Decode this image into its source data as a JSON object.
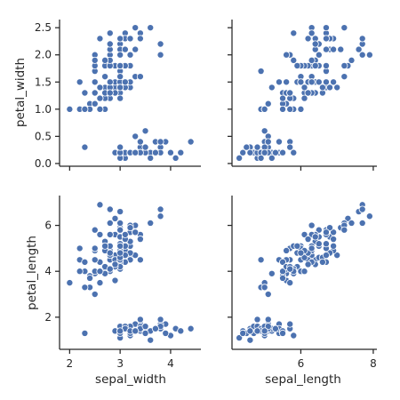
{
  "chart_data": {
    "type": "scatter",
    "layout": "pairplot-2x2",
    "point_color": "#4c72b0",
    "grid": false,
    "x_vars": [
      {
        "name": "sepal_width",
        "label": "sepal_width",
        "range": [
          1.8,
          4.6
        ],
        "ticks": [
          2,
          3,
          4
        ]
      },
      {
        "name": "sepal_length",
        "label": "sepal_length",
        "range": [
          4.1,
          8.1
        ],
        "ticks": [
          6,
          8
        ]
      }
    ],
    "y_vars": [
      {
        "name": "petal_width",
        "label": "petal_width",
        "range": [
          -0.05,
          2.65
        ],
        "ticks": [
          0.0,
          0.5,
          1.0,
          1.5,
          2.0,
          2.5
        ],
        "tick_labels": [
          "0.0",
          "0.5",
          "1.0",
          "1.5",
          "2.0",
          "2.5"
        ]
      },
      {
        "name": "petal_length",
        "label": "petal_length",
        "range": [
          0.6,
          7.3
        ],
        "ticks": [
          2,
          4,
          6
        ],
        "tick_labels": [
          "2",
          "4",
          "6"
        ]
      }
    ],
    "points": [
      [
        5.1,
        3.5,
        1.4,
        0.2
      ],
      [
        4.9,
        3.0,
        1.4,
        0.2
      ],
      [
        4.7,
        3.2,
        1.3,
        0.2
      ],
      [
        4.6,
        3.1,
        1.5,
        0.2
      ],
      [
        5.0,
        3.6,
        1.4,
        0.2
      ],
      [
        5.4,
        3.9,
        1.7,
        0.4
      ],
      [
        4.6,
        3.4,
        1.4,
        0.3
      ],
      [
        5.0,
        3.4,
        1.5,
        0.2
      ],
      [
        4.4,
        2.9,
        1.4,
        0.2
      ],
      [
        4.9,
        3.1,
        1.5,
        0.1
      ],
      [
        5.4,
        3.7,
        1.5,
        0.2
      ],
      [
        4.8,
        3.4,
        1.6,
        0.2
      ],
      [
        4.8,
        3.0,
        1.4,
        0.1
      ],
      [
        4.3,
        3.0,
        1.1,
        0.1
      ],
      [
        5.8,
        4.0,
        1.2,
        0.2
      ],
      [
        5.7,
        4.4,
        1.5,
        0.4
      ],
      [
        5.4,
        3.9,
        1.3,
        0.4
      ],
      [
        5.1,
        3.5,
        1.4,
        0.3
      ],
      [
        5.7,
        3.8,
        1.7,
        0.3
      ],
      [
        5.1,
        3.8,
        1.5,
        0.3
      ],
      [
        5.4,
        3.4,
        1.7,
        0.2
      ],
      [
        5.1,
        3.7,
        1.5,
        0.4
      ],
      [
        4.6,
        3.6,
        1.0,
        0.2
      ],
      [
        5.1,
        3.3,
        1.7,
        0.5
      ],
      [
        4.8,
        3.4,
        1.9,
        0.2
      ],
      [
        5.0,
        3.0,
        1.6,
        0.2
      ],
      [
        5.0,
        3.4,
        1.6,
        0.4
      ],
      [
        5.2,
        3.5,
        1.5,
        0.2
      ],
      [
        5.2,
        3.4,
        1.4,
        0.2
      ],
      [
        4.7,
        3.2,
        1.6,
        0.2
      ],
      [
        4.8,
        3.1,
        1.6,
        0.2
      ],
      [
        5.4,
        3.4,
        1.5,
        0.4
      ],
      [
        5.2,
        4.1,
        1.5,
        0.1
      ],
      [
        5.5,
        4.2,
        1.4,
        0.2
      ],
      [
        4.9,
        3.1,
        1.5,
        0.2
      ],
      [
        5.0,
        3.2,
        1.2,
        0.2
      ],
      [
        5.5,
        3.5,
        1.3,
        0.2
      ],
      [
        4.9,
        3.6,
        1.4,
        0.1
      ],
      [
        4.4,
        3.0,
        1.3,
        0.2
      ],
      [
        5.1,
        3.4,
        1.5,
        0.2
      ],
      [
        5.0,
        3.5,
        1.3,
        0.3
      ],
      [
        4.5,
        2.3,
        1.3,
        0.3
      ],
      [
        4.4,
        3.2,
        1.3,
        0.2
      ],
      [
        5.0,
        3.5,
        1.6,
        0.6
      ],
      [
        5.1,
        3.8,
        1.9,
        0.4
      ],
      [
        4.8,
        3.0,
        1.4,
        0.3
      ],
      [
        5.1,
        3.8,
        1.6,
        0.2
      ],
      [
        4.6,
        3.2,
        1.4,
        0.2
      ],
      [
        5.3,
        3.7,
        1.5,
        0.2
      ],
      [
        5.0,
        3.3,
        1.4,
        0.2
      ],
      [
        7.0,
        3.2,
        4.7,
        1.4
      ],
      [
        6.4,
        3.2,
        4.5,
        1.5
      ],
      [
        6.9,
        3.1,
        4.9,
        1.5
      ],
      [
        5.5,
        2.3,
        4.0,
        1.3
      ],
      [
        6.5,
        2.8,
        4.6,
        1.5
      ],
      [
        5.7,
        2.8,
        4.5,
        1.3
      ],
      [
        6.3,
        3.3,
        4.7,
        1.6
      ],
      [
        4.9,
        2.4,
        3.3,
        1.0
      ],
      [
        6.6,
        2.9,
        4.6,
        1.3
      ],
      [
        5.2,
        2.7,
        3.9,
        1.4
      ],
      [
        5.0,
        2.0,
        3.5,
        1.0
      ],
      [
        5.9,
        3.0,
        4.2,
        1.5
      ],
      [
        6.0,
        2.2,
        4.0,
        1.0
      ],
      [
        6.1,
        2.9,
        4.7,
        1.4
      ],
      [
        5.6,
        2.9,
        3.6,
        1.3
      ],
      [
        6.7,
        3.1,
        4.4,
        1.4
      ],
      [
        5.6,
        3.0,
        4.5,
        1.5
      ],
      [
        5.8,
        2.7,
        4.1,
        1.0
      ],
      [
        6.2,
        2.2,
        4.5,
        1.5
      ],
      [
        5.6,
        2.5,
        3.9,
        1.1
      ],
      [
        5.9,
        3.2,
        4.8,
        1.8
      ],
      [
        6.1,
        2.8,
        4.0,
        1.3
      ],
      [
        6.3,
        2.5,
        4.9,
        1.5
      ],
      [
        6.1,
        2.8,
        4.7,
        1.2
      ],
      [
        6.4,
        2.9,
        4.3,
        1.3
      ],
      [
        6.6,
        3.0,
        4.4,
        1.4
      ],
      [
        6.8,
        2.8,
        4.8,
        1.4
      ],
      [
        6.7,
        3.0,
        5.0,
        1.7
      ],
      [
        6.0,
        2.9,
        4.5,
        1.5
      ],
      [
        5.7,
        2.6,
        3.5,
        1.0
      ],
      [
        5.5,
        2.4,
        3.8,
        1.1
      ],
      [
        5.5,
        2.4,
        3.7,
        1.0
      ],
      [
        5.8,
        2.7,
        3.9,
        1.2
      ],
      [
        6.0,
        2.7,
        5.1,
        1.6
      ],
      [
        5.4,
        3.0,
        4.5,
        1.5
      ],
      [
        6.0,
        3.4,
        4.5,
        1.6
      ],
      [
        6.7,
        3.1,
        4.7,
        1.5
      ],
      [
        6.3,
        2.3,
        4.4,
        1.3
      ],
      [
        5.6,
        3.0,
        4.1,
        1.3
      ],
      [
        5.5,
        2.5,
        4.0,
        1.3
      ],
      [
        5.5,
        2.6,
        4.4,
        1.2
      ],
      [
        6.1,
        3.0,
        4.6,
        1.4
      ],
      [
        5.8,
        2.6,
        4.0,
        1.2
      ],
      [
        5.0,
        2.3,
        3.3,
        1.0
      ],
      [
        5.6,
        2.7,
        4.2,
        1.3
      ],
      [
        5.7,
        3.0,
        4.2,
        1.2
      ],
      [
        5.7,
        2.9,
        4.2,
        1.3
      ],
      [
        6.2,
        2.9,
        4.3,
        1.3
      ],
      [
        5.1,
        2.5,
        3.0,
        1.1
      ],
      [
        5.7,
        2.8,
        4.1,
        1.3
      ],
      [
        6.3,
        3.3,
        6.0,
        2.5
      ],
      [
        5.8,
        2.7,
        5.1,
        1.9
      ],
      [
        7.1,
        3.0,
        5.9,
        2.1
      ],
      [
        6.3,
        2.9,
        5.6,
        1.8
      ],
      [
        6.5,
        3.0,
        5.8,
        2.2
      ],
      [
        7.6,
        3.0,
        6.6,
        2.1
      ],
      [
        4.9,
        2.5,
        4.5,
        1.7
      ],
      [
        7.3,
        2.9,
        6.3,
        1.8
      ],
      [
        6.7,
        2.5,
        5.8,
        1.8
      ],
      [
        7.2,
        3.6,
        6.1,
        2.5
      ],
      [
        6.5,
        3.2,
        5.1,
        2.0
      ],
      [
        6.4,
        2.7,
        5.3,
        1.9
      ],
      [
        6.8,
        3.0,
        5.5,
        2.1
      ],
      [
        5.7,
        2.5,
        5.0,
        2.0
      ],
      [
        5.8,
        2.8,
        5.1,
        2.4
      ],
      [
        6.4,
        3.2,
        5.3,
        2.3
      ],
      [
        6.5,
        3.0,
        5.5,
        1.8
      ],
      [
        7.7,
        3.8,
        6.7,
        2.2
      ],
      [
        7.7,
        2.6,
        6.9,
        2.3
      ],
      [
        6.0,
        2.2,
        5.0,
        1.5
      ],
      [
        6.9,
        3.2,
        5.7,
        2.3
      ],
      [
        5.6,
        2.8,
        4.9,
        2.0
      ],
      [
        7.7,
        2.8,
        6.7,
        2.0
      ],
      [
        6.3,
        2.7,
        4.9,
        1.8
      ],
      [
        6.7,
        3.3,
        5.7,
        2.1
      ],
      [
        7.2,
        3.2,
        6.0,
        1.8
      ],
      [
        6.2,
        2.8,
        4.8,
        1.8
      ],
      [
        6.1,
        3.0,
        4.9,
        1.8
      ],
      [
        6.4,
        2.8,
        5.6,
        2.1
      ],
      [
        7.2,
        3.0,
        5.8,
        1.6
      ],
      [
        7.4,
        2.8,
        6.1,
        1.9
      ],
      [
        7.9,
        3.8,
        6.4,
        2.0
      ],
      [
        6.4,
        2.8,
        5.6,
        2.2
      ],
      [
        6.3,
        2.8,
        5.1,
        1.5
      ],
      [
        6.1,
        2.6,
        5.6,
        1.4
      ],
      [
        7.7,
        3.0,
        6.1,
        2.3
      ],
      [
        6.3,
        3.4,
        5.6,
        2.4
      ],
      [
        6.4,
        3.1,
        5.5,
        1.8
      ],
      [
        6.0,
        3.0,
        4.8,
        1.8
      ],
      [
        6.9,
        3.1,
        5.4,
        2.1
      ],
      [
        6.7,
        3.1,
        5.6,
        2.4
      ],
      [
        6.9,
        3.1,
        5.1,
        2.3
      ],
      [
        5.8,
        2.7,
        5.1,
        1.9
      ],
      [
        6.8,
        3.2,
        5.9,
        2.3
      ],
      [
        6.7,
        3.3,
        5.7,
        2.5
      ],
      [
        6.7,
        3.0,
        5.2,
        2.3
      ],
      [
        6.3,
        2.5,
        5.0,
        1.9
      ],
      [
        6.5,
        3.0,
        5.2,
        2.0
      ],
      [
        6.2,
        3.4,
        5.4,
        2.3
      ],
      [
        5.9,
        3.0,
        5.1,
        1.8
      ]
    ]
  }
}
